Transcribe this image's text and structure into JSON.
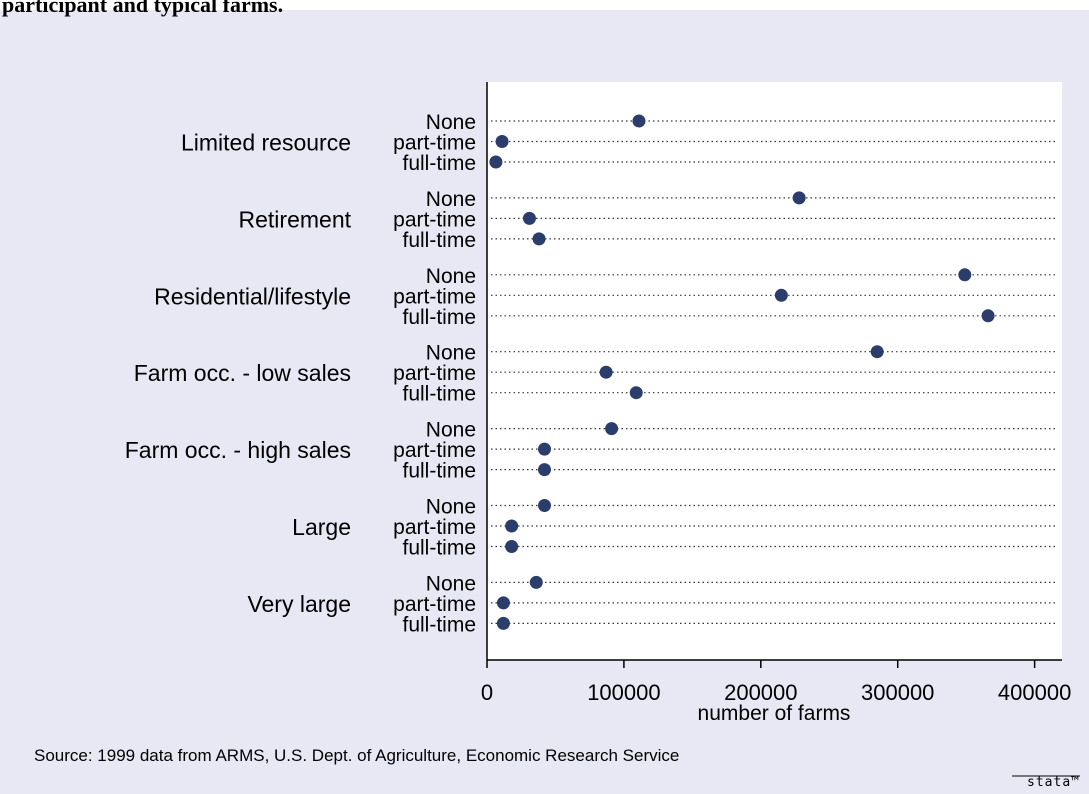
{
  "chart_data": {
    "type": "dot",
    "title": "participant and typical farms.",
    "groups": [
      "Limited resource",
      "Retirement",
      "Residential/lifestyle",
      "Farm occ. - low sales",
      "Farm occ. - high sales",
      "Large",
      "Very large"
    ],
    "levels": [
      "None",
      "part-time",
      "full-time"
    ],
    "values": [
      [
        111000,
        11000,
        6500
      ],
      [
        228000,
        31000,
        38000
      ],
      [
        349000,
        215000,
        366000
      ],
      [
        285000,
        87000,
        109000
      ],
      [
        91000,
        42000,
        42000
      ],
      [
        42000,
        18000,
        18000
      ],
      [
        36000,
        12000,
        12000
      ]
    ],
    "color": "#2a3d6b",
    "xlim": [
      0,
      420000
    ],
    "xticks": [
      0,
      100000,
      200000,
      300000,
      400000
    ],
    "xlabel": "number of farms",
    "note": "Source:  1999 data from ARMS, U.S. Dept. of Agriculture, Economic Research Service",
    "logo": "stata™"
  }
}
